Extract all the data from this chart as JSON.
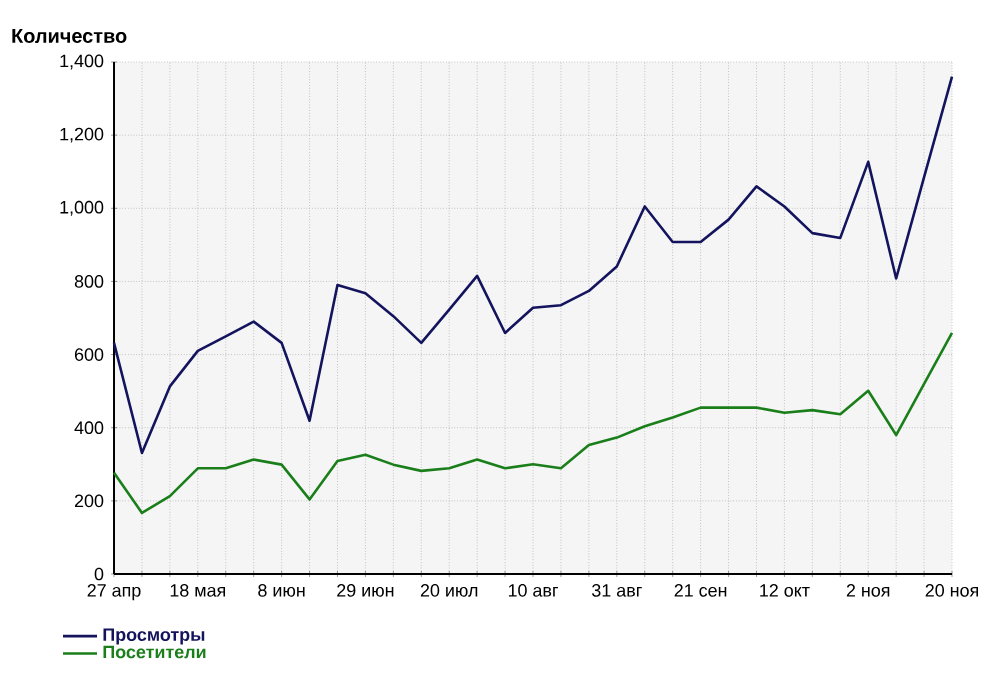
{
  "chart_data": {
    "type": "line",
    "ylabel": "Количество",
    "categories": [
      "27 апр",
      null,
      null,
      "18 мая",
      null,
      null,
      "8 июн",
      null,
      null,
      "29 июн",
      null,
      null,
      "20 июл",
      null,
      null,
      "10 авг",
      null,
      null,
      "31 авг",
      null,
      null,
      "21 сен",
      null,
      null,
      "12 окт",
      null,
      null,
      "2 ноя",
      null,
      null,
      "20 ноя"
    ],
    "series": [
      {
        "name": "Просмотры",
        "color": "#14145e",
        "values": [
          632,
          331,
          513,
          610,
          650,
          690,
          632,
          419,
          790,
          768,
          705,
          632,
          723,
          815,
          659,
          728,
          735,
          774,
          841,
          1005,
          908,
          908,
          969,
          1060,
          1005,
          932,
          919,
          1127,
          808,
          1085,
          1360
        ]
      },
      {
        "name": "Посетители",
        "color": "#1a7f1a",
        "values": [
          277,
          167,
          213,
          289,
          289,
          313,
          299,
          204,
          309,
          326,
          299,
          282,
          289,
          313,
          289,
          300,
          289,
          353,
          373,
          404,
          428,
          455,
          455,
          455,
          441,
          448,
          437,
          501,
          380,
          520,
          659
        ]
      }
    ],
    "ylim": [
      0,
      1400
    ],
    "yticks": [
      0,
      200,
      400,
      600,
      800,
      {
        "value": 1000,
        "label": "1,000"
      },
      {
        "value": 1200,
        "label": "1,200"
      },
      {
        "value": 1400,
        "label": "1,400"
      }
    ],
    "grid": true,
    "legend": "bottom left",
    "marker": "none",
    "line_style": "solid"
  }
}
